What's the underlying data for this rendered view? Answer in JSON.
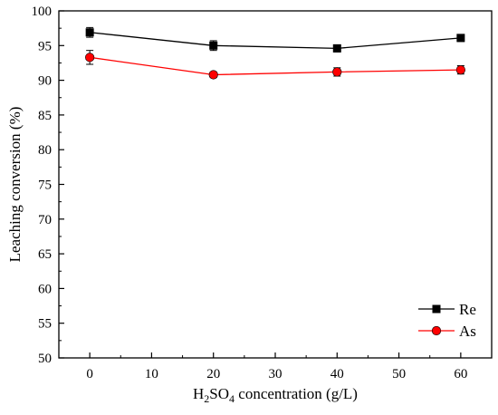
{
  "chart_data": {
    "type": "line",
    "xlabel": {
      "prefix": "H",
      "sub1": "2",
      "mid": "SO",
      "sub2": "4",
      "suffix": " concentration (g/L)"
    },
    "ylabel": "Leaching conversion (%)",
    "xlim": [
      -5,
      65
    ],
    "ylim": [
      50,
      100
    ],
    "x_ticks": [
      0,
      10,
      20,
      30,
      40,
      50,
      60
    ],
    "y_ticks": [
      50,
      55,
      60,
      65,
      70,
      75,
      80,
      85,
      90,
      95,
      100
    ],
    "x": [
      0,
      20,
      40,
      60
    ],
    "series": [
      {
        "name": "Re",
        "marker": "square",
        "color": "#000000",
        "values": [
          96.9,
          95.0,
          94.6,
          96.1
        ],
        "errors": [
          0.7,
          0.7,
          0.5,
          0.5
        ]
      },
      {
        "name": "As",
        "marker": "circle",
        "color": "#ff0000",
        "values": [
          93.3,
          90.8,
          91.2,
          91.5
        ],
        "errors": [
          1.0,
          0.4,
          0.6,
          0.6
        ]
      }
    ],
    "grid": false,
    "legend": "bottom-right"
  }
}
